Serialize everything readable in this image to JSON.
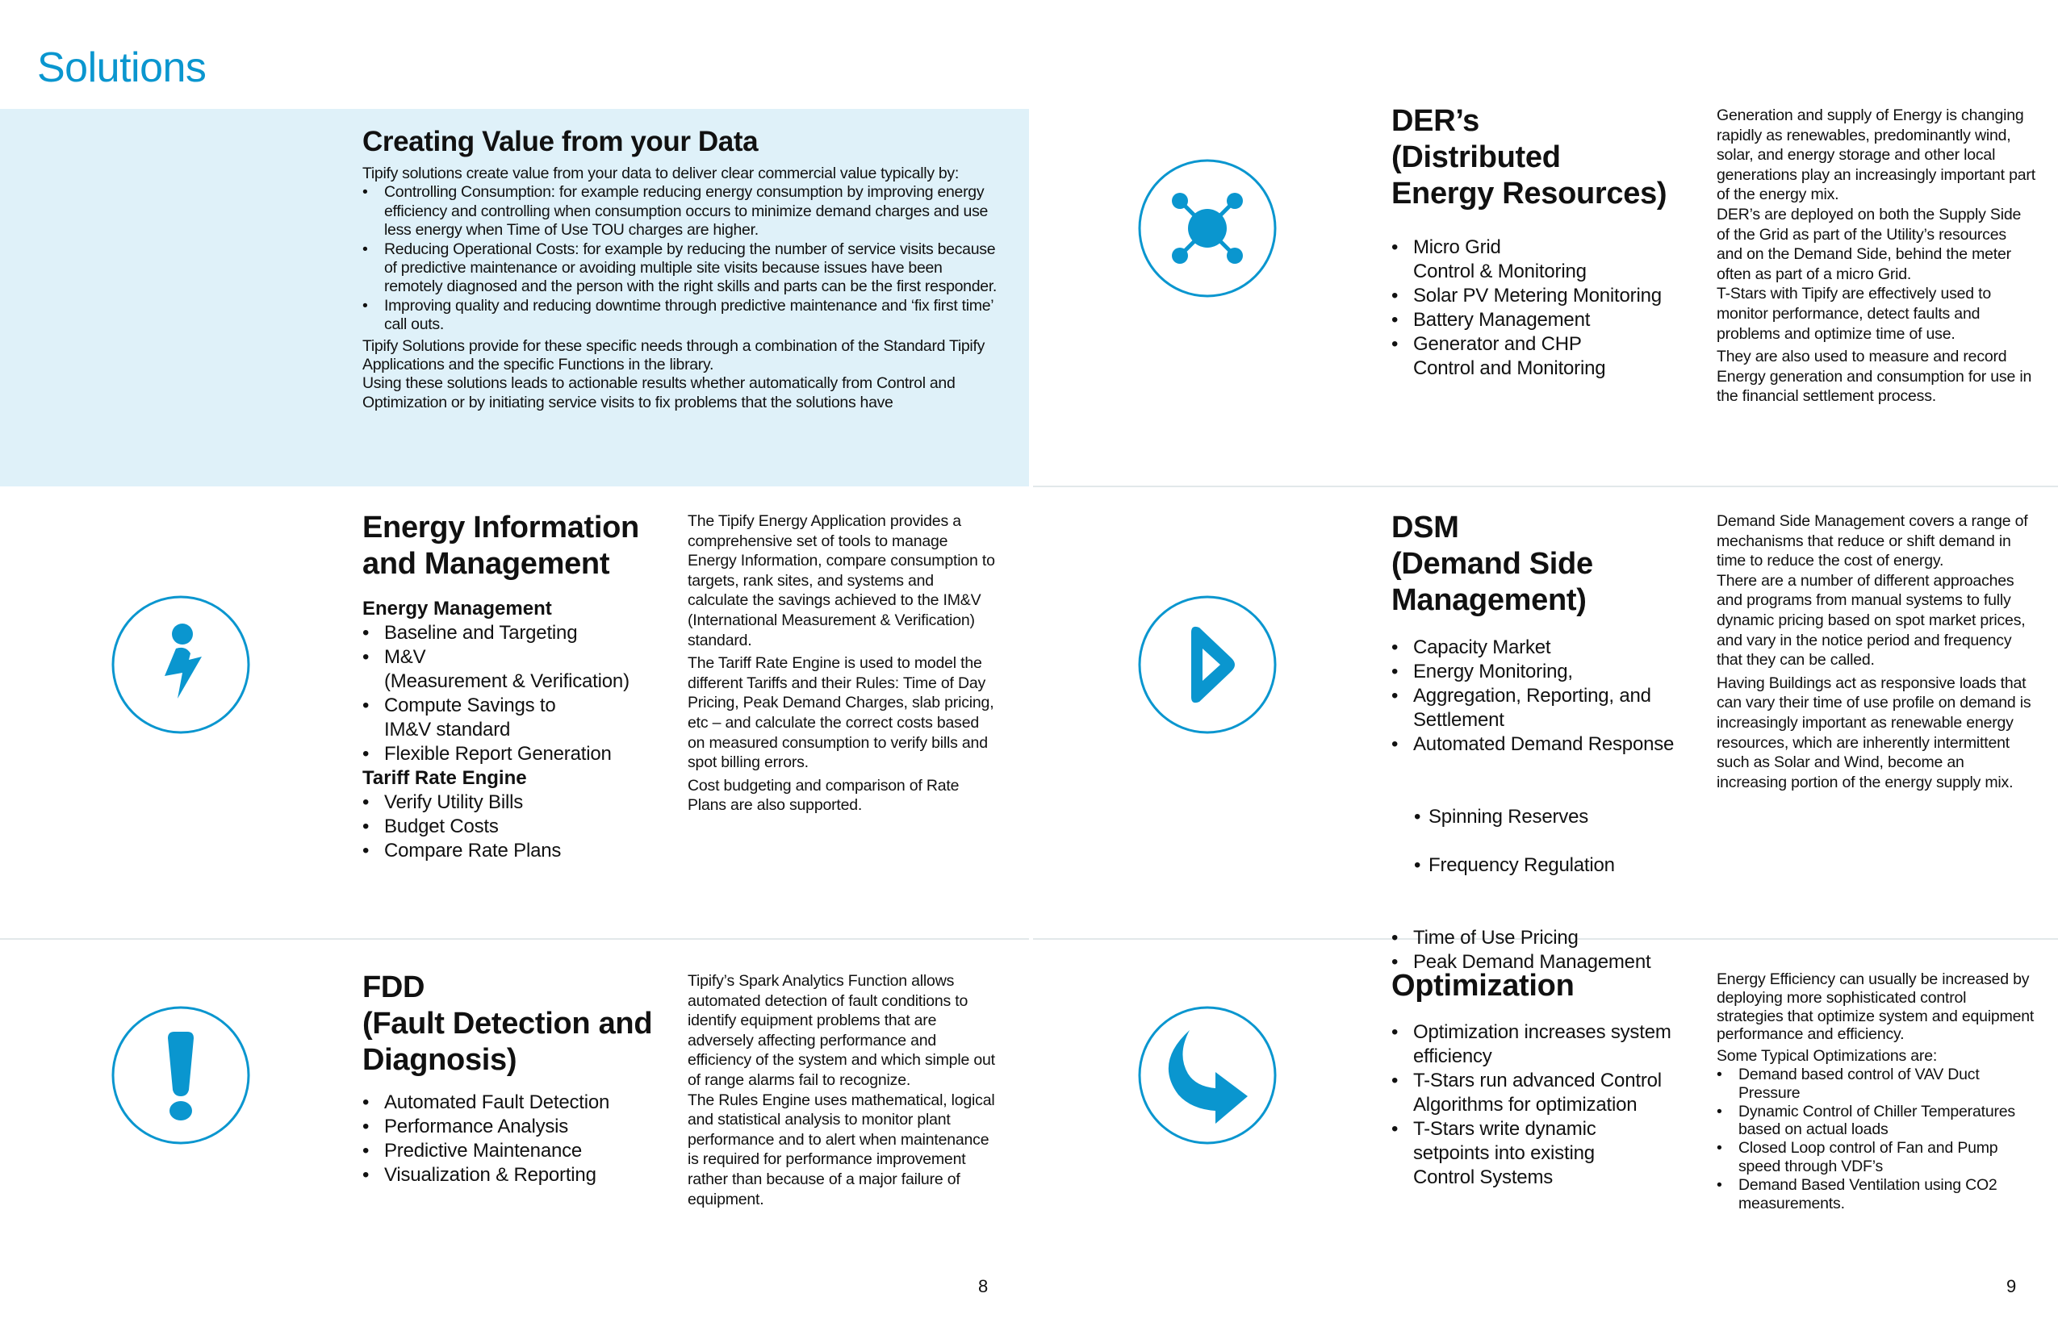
{
  "colors": {
    "accent": "#0a96cf",
    "panel": "#dff1f9"
  },
  "page_title": "Solutions",
  "intro": {
    "title": "Creating Value from your Data",
    "lead": "Tipify solutions create value from your data to deliver clear commercial value typically by:",
    "bullets": [
      "Controlling Consumption: for example reducing energy consumption by improving energy efficiency and controlling when consumption occurs to minimize demand charges and use less energy when Time of Use TOU charges are higher.",
      "Reducing Operational Costs: for example by reducing the number of service visits because of predictive maintenance or avoiding multiple site visits because issues have been remotely  diagnosed and the person with the right skills and parts can be the first responder.",
      "Improving quality and reducing downtime through predictive maintenance and ‘fix first time’ call outs."
    ],
    "closing": [
      "Tipify Solutions provide for these specific needs through a combination of the Standard Tipify Applications and the specific Functions in the library.",
      "Using these solutions leads to actionable results whether automatically from Control and Optimization or by initiating service visits to fix problems that the solutions have"
    ]
  },
  "eim": {
    "icon": "info-lightning-icon",
    "title": "Energy Information\nand Management",
    "group1": "Energy Management",
    "items1": [
      "Baseline and Targeting",
      "M&V\n(Measurement & Verification)",
      "Compute Savings to\nIM&V standard",
      "Flexible Report Generation"
    ],
    "group2": "Tariff Rate Engine",
    "items2": [
      "Verify Utility Bills",
      "Budget Costs",
      "Compare Rate Plans"
    ],
    "text": [
      "The Tipify Energy Application provides a comprehensive set of tools to manage Energy Information, compare consumption to targets, rank sites, and systems and calculate the savings achieved to the IM&V (International Measurement & Verification) standard.",
      "The Tariff Rate Engine is used to model the different Tariffs and their Rules: Time of Day Pricing, Peak Demand Charges, slab pricing, etc – and calculate the correct costs based on measured consumption to verify bills and spot billing errors.",
      "Cost budgeting and comparison of Rate Plans are also supported."
    ]
  },
  "fdd": {
    "icon": "exclamation-icon",
    "title": "FDD\n(Fault Detection and\nDiagnosis)",
    "items": [
      "Automated Fault Detection",
      "Performance Analysis",
      "Predictive Maintenance",
      "Visualization & Reporting"
    ],
    "text": [
      "Tipify’s Spark Analytics Function allows automated detection of fault conditions to identify equipment problems that are adversely affecting performance and efficiency of the system and which simple out of range alarms fail to recognize.",
      "The Rules Engine uses mathematical, logical and statistical analysis to monitor plant performance and to alert when maintenance is required for performance improvement rather than because of a major failure of equipment."
    ]
  },
  "der": {
    "icon": "network-nodes-icon",
    "title": "DER’s\n(Distributed\nEnergy Resources)",
    "items": [
      "Micro Grid\nControl & Monitoring",
      "Solar PV Metering Monitoring",
      "Battery Management",
      "Generator and CHP\nControl and Monitoring"
    ],
    "text": [
      "Generation and supply of Energy is changing rapidly as renewables, predominantly wind, solar, and energy storage and other local generations play an increasingly important part of the energy mix.",
      "DER’s are deployed on both the Supply Side of the Grid as part of the Utility’s resources and on the Demand Side, behind the meter often as part of a micro Grid.",
      "T-Stars with Tipify are effectively used to monitor performance, detect faults and problems and optimize time of use.",
      "They are also used to measure and record Energy generation and consumption for use in the financial settlement process."
    ]
  },
  "dsm": {
    "icon": "play-arrow-icon",
    "title": "DSM\n(Demand Side\nManagement)",
    "items": [
      "Capacity Market",
      "Energy Monitoring,",
      "Aggregation, Reporting, and\nSettlement",
      "Automated Demand Response"
    ],
    "subitems": [
      "Spinning Reserves",
      "Frequency Regulation"
    ],
    "items_after": [
      "Time of Use Pricing",
      "Peak Demand Management"
    ],
    "text": [
      "Demand Side Management covers a range of mechanisms that reduce or shift demand in time to reduce the cost of energy.",
      "There are a number of different approaches and programs from manual systems to fully dynamic pricing based on spot market prices, and vary in the notice period and frequency that they can be called.",
      "Having Buildings act as responsive loads that can vary their time of use profile on demand is increasingly important as renewable energy resources, which are inherently intermittent such as Solar and Wind, become an increasing portion of the energy supply mix."
    ]
  },
  "opt": {
    "icon": "curved-arrow-icon",
    "title": "Optimization",
    "items": [
      "Optimization increases system\nefficiency",
      "T-Stars run advanced Control\nAlgorithms for optimization",
      "T-Stars write dynamic\nsetpoints  into existing\nControl Systems"
    ],
    "lead": [
      "Energy Efficiency can usually be increased by deploying more sophisticated control strategies that optimize system and equipment performance and efficiency.",
      "Some Typical Optimizations are:"
    ],
    "bullets": [
      "Demand based control of VAV Duct Pressure",
      "Dynamic Control of Chiller Temperatures based on actual loads",
      "Closed Loop control of Fan and Pump speed through VDF’s",
      "Demand Based Ventilation using CO2 measurements."
    ]
  },
  "page_numbers": {
    "left": "8",
    "right": "9"
  }
}
